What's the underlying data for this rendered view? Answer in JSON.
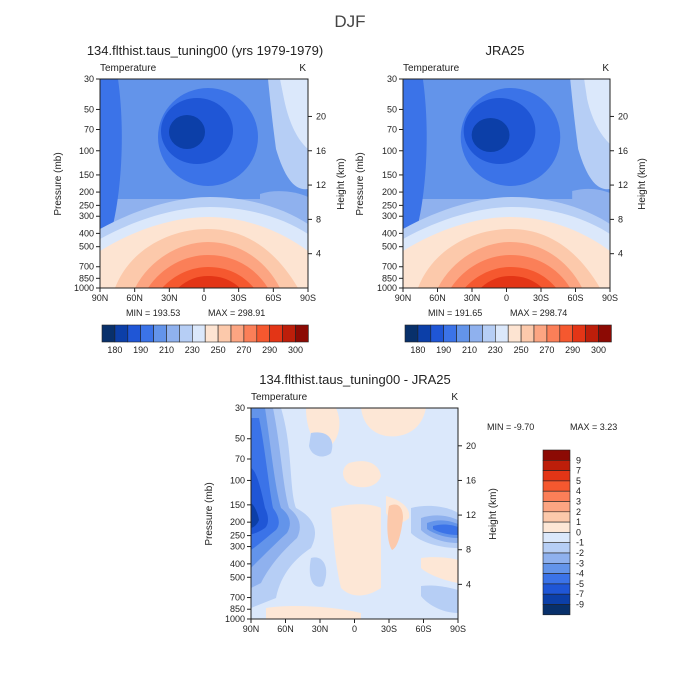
{
  "season": "DJF",
  "colors": {
    "cool": [
      "#08306b",
      "#0c3fa8",
      "#1f56d6",
      "#3b73e8",
      "#6394ea",
      "#8fb1ee",
      "#b6cef5",
      "#dbe8fb"
    ],
    "warm": [
      "#fde4d2",
      "#fcc9ab",
      "#fca582",
      "#fb7f58",
      "#f5582f",
      "#e33516",
      "#bd1e0a",
      "#8c0a04"
    ],
    "diff": [
      "#08306b",
      "#0c3fa8",
      "#1f56d6",
      "#3b73e8",
      "#6394ea",
      "#8fb1ee",
      "#b6cef5",
      "#dbe8fb",
      "#fde7d6",
      "#fcc9ab",
      "#fca582",
      "#fb7f58",
      "#f5582f",
      "#e33516",
      "#bd1e0a",
      "#8c0a04"
    ]
  },
  "chart_data": [
    {
      "type": "heatmap",
      "id": "model",
      "title": "134.flthist.taus_tuning00 (yrs 1979-1979)",
      "subtitle_left": "Temperature",
      "subtitle_right": "K",
      "xlabel": "",
      "ylabel": "Pressure (mb)",
      "ylabel_right": "Height (km)",
      "x_ticks": [
        "90N",
        "60N",
        "30N",
        "0",
        "30S",
        "60S",
        "90S"
      ],
      "y_ticks": [
        "30",
        "50",
        "70",
        "100",
        "150",
        "200",
        "250",
        "300",
        "400",
        "500",
        "700",
        "850",
        "1000"
      ],
      "height_ticks": [
        "20",
        "16",
        "12",
        "8",
        "4"
      ],
      "min_label": "MIN = 193.53",
      "max_label": "MAX = 298.91",
      "min": 193.53,
      "max": 298.91,
      "colorbar": [
        "180",
        "190",
        "210",
        "230",
        "250",
        "270",
        "290",
        "300"
      ]
    },
    {
      "type": "heatmap",
      "id": "obs",
      "title": "JRA25",
      "subtitle_left": "Temperature",
      "subtitle_right": "K",
      "xlabel": "",
      "ylabel": "Pressure (mb)",
      "ylabel_right": "Height (km)",
      "x_ticks": [
        "90N",
        "60N",
        "30N",
        "0",
        "30S",
        "60S",
        "90S"
      ],
      "y_ticks": [
        "30",
        "50",
        "70",
        "100",
        "150",
        "200",
        "250",
        "300",
        "400",
        "500",
        "700",
        "850",
        "1000"
      ],
      "height_ticks": [
        "20",
        "16",
        "12",
        "8",
        "4"
      ],
      "min_label": "MIN = 191.65",
      "max_label": "MAX = 298.74",
      "min": 191.65,
      "max": 298.74,
      "colorbar": [
        "180",
        "190",
        "210",
        "230",
        "250",
        "270",
        "290",
        "300"
      ]
    },
    {
      "type": "heatmap",
      "id": "diff",
      "title": "134.flthist.taus_tuning00 - JRA25",
      "subtitle_left": "Temperature",
      "subtitle_right": "K",
      "xlabel": "",
      "ylabel": "Pressure (mb)",
      "ylabel_right": "Height (km)",
      "x_ticks": [
        "90N",
        "60N",
        "30N",
        "0",
        "30S",
        "60S",
        "90S"
      ],
      "y_ticks": [
        "30",
        "50",
        "70",
        "100",
        "150",
        "200",
        "250",
        "300",
        "400",
        "500",
        "700",
        "850",
        "1000"
      ],
      "height_ticks": [
        "20",
        "16",
        "12",
        "8",
        "4"
      ],
      "min_label": "MIN =   -9.70",
      "max_label": "MAX =    3.23",
      "min": -9.7,
      "max": 3.23,
      "colorbar": [
        "9",
        "7",
        "5",
        "4",
        "3",
        "2",
        "1",
        "0",
        "-1",
        "-2",
        "-3",
        "-4",
        "-5",
        "-7",
        "-9"
      ]
    }
  ]
}
